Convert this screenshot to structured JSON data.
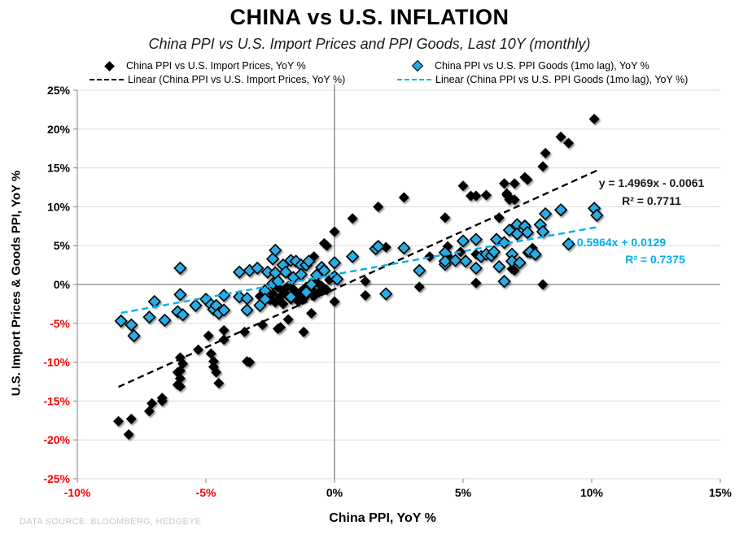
{
  "header": {
    "title": "CHINA vs U.S. INFLATION",
    "subtitle": "China PPI vs U.S. Import Prices and PPI Goods, Last 10Y (monthly)"
  },
  "legend": {
    "series1_label": "China PPI vs U.S. Import Prices, YoY %",
    "series1_linear_label": "Linear (China PPI vs U.S. Import Prices, YoY %)",
    "series2_label": "China PPI vs U.S. PPI Goods (1mo lag), YoY %",
    "series2_linear_label": "Linear (China PPI vs U.S. PPI Goods (1mo lag), YoY %)"
  },
  "annotations": {
    "black_eq": "y = 1.4969x - 0.0061",
    "black_r2": "R² = 0.7711",
    "blue_eq": "= 0.5964x + 0.0129",
    "blue_r2": "R² = 0.7375"
  },
  "footer": {
    "source": "DATA SOURCE: BLOOMBERG, HEDGEYE"
  },
  "colors": {
    "black_series": "#000000",
    "blue_series_fill": "#29ABE2",
    "blue_line": "#00B0F0",
    "negative_label": "#FF0000",
    "positive_label": "#000000",
    "gridline": "#D9D9D9",
    "axis_line": "#808080",
    "source_text": "#C8C8C8"
  },
  "chart_data": {
    "type": "scatter",
    "title": "CHINA vs U.S. INFLATION",
    "subtitle": "China PPI vs U.S. Import Prices and PPI Goods, Last 10Y (monthly)",
    "xlabel": "China PPI, YoY %",
    "ylabel": "U.S. Import Prices & Goods PPI, YoY %",
    "xlim": [
      -10,
      15
    ],
    "ylim": [
      -25,
      25
    ],
    "x_ticks": [
      -10,
      -5,
      0,
      5,
      10,
      15
    ],
    "y_ticks": [
      -25,
      -20,
      -15,
      -10,
      -5,
      0,
      5,
      10,
      15,
      20,
      25
    ],
    "units": "percent",
    "grid": "horizontal-light, zero-axes-gray",
    "legend_position": "top",
    "series": [
      {
        "name": "China PPI vs U.S. Import Prices, YoY %",
        "marker": "diamond",
        "color": "#000000",
        "points": [
          [
            -8.4,
            -17.6
          ],
          [
            -8.0,
            -19.3
          ],
          [
            -7.9,
            -17.3
          ],
          [
            -7.2,
            -16.3
          ],
          [
            -7.1,
            -15.3
          ],
          [
            -6.7,
            -15.0
          ],
          [
            -6.7,
            -14.6
          ],
          [
            -6.1,
            -11.3
          ],
          [
            -6.0,
            -12.1
          ],
          [
            -6.0,
            -13.1
          ],
          [
            -6.0,
            -9.4
          ],
          [
            -6.0,
            -11.1
          ],
          [
            -5.9,
            -10.2
          ],
          [
            -6.1,
            -12.9
          ],
          [
            -5.3,
            -8.4
          ],
          [
            -4.9,
            -6.6
          ],
          [
            -4.8,
            -8.9
          ],
          [
            -4.7,
            -9.9
          ],
          [
            -4.7,
            -10.6
          ],
          [
            -4.6,
            -11.3
          ],
          [
            -4.5,
            -12.7
          ],
          [
            -4.3,
            -5.9
          ],
          [
            -4.3,
            -7.1
          ],
          [
            -3.5,
            -6.1
          ],
          [
            -3.4,
            -9.9
          ],
          [
            -3.3,
            -10.0
          ],
          [
            -2.8,
            -5.2
          ],
          [
            -2.2,
            -5.7
          ],
          [
            -2.1,
            -5.5
          ],
          [
            -1.2,
            -6.1
          ],
          [
            -2.9,
            -1.5
          ],
          [
            -2.7,
            -0.9
          ],
          [
            -2.5,
            -2.0
          ],
          [
            -2.4,
            -1.2
          ],
          [
            -2.3,
            -2.3
          ],
          [
            -2.2,
            -0.4
          ],
          [
            -2.1,
            -1.6
          ],
          [
            -2.0,
            -2.5
          ],
          [
            -2.0,
            -0.8
          ],
          [
            -1.9,
            -1.2
          ],
          [
            -1.8,
            -0.2
          ],
          [
            -1.8,
            -4.5
          ],
          [
            -1.7,
            -1.9
          ],
          [
            -1.6,
            -0.6
          ],
          [
            -1.5,
            -1.4
          ],
          [
            -1.4,
            -2.2
          ],
          [
            -1.3,
            -0.9
          ],
          [
            -1.2,
            -1.8
          ],
          [
            -1.1,
            -0.3
          ],
          [
            -1.0,
            -1.1
          ],
          [
            -0.9,
            -3.7
          ],
          [
            -0.9,
            -0.6
          ],
          [
            -0.8,
            3.6
          ],
          [
            -0.8,
            -1.5
          ],
          [
            -0.7,
            0.3
          ],
          [
            -0.6,
            -1.0
          ],
          [
            -0.5,
            -0.2
          ],
          [
            -0.4,
            5.3
          ],
          [
            -0.3,
            5.0
          ],
          [
            -0.3,
            -0.7
          ],
          [
            -0.2,
            0.6
          ],
          [
            0.0,
            6.8
          ],
          [
            0.0,
            -2.2
          ],
          [
            0.7,
            8.5
          ],
          [
            1.2,
            0.4
          ],
          [
            1.2,
            -1.4
          ],
          [
            1.7,
            10.0
          ],
          [
            2.0,
            4.8
          ],
          [
            2.7,
            11.2
          ],
          [
            3.3,
            -0.3
          ],
          [
            3.7,
            3.6
          ],
          [
            4.3,
            8.6
          ],
          [
            4.4,
            4.9
          ],
          [
            4.4,
            3.7
          ],
          [
            4.9,
            4.2
          ],
          [
            5.0,
            12.7
          ],
          [
            5.3,
            11.4
          ],
          [
            5.5,
            11.4
          ],
          [
            5.5,
            3.9
          ],
          [
            5.5,
            0.2
          ],
          [
            5.9,
            11.5
          ],
          [
            6.4,
            8.6
          ],
          [
            6.6,
            13.0
          ],
          [
            6.7,
            11.7
          ],
          [
            6.7,
            11.5
          ],
          [
            6.8,
            10.9
          ],
          [
            6.8,
            11.2
          ],
          [
            7.0,
            13.0
          ],
          [
            7.0,
            10.9
          ],
          [
            7.0,
            1.8
          ],
          [
            7.4,
            13.8
          ],
          [
            7.5,
            13.5
          ],
          [
            7.4,
            7.7
          ],
          [
            7.5,
            4.1
          ],
          [
            7.7,
            4.7
          ],
          [
            7.8,
            3.9
          ],
          [
            6.9,
            2.0
          ],
          [
            8.1,
            0.0
          ],
          [
            8.1,
            15.2
          ],
          [
            8.2,
            16.9
          ],
          [
            8.8,
            19.0
          ],
          [
            9.1,
            18.2
          ],
          [
            10.1,
            21.3
          ]
        ]
      },
      {
        "name": "China PPI vs U.S. PPI Goods (1mo lag), YoY %",
        "marker": "diamond",
        "color": "#29ABE2",
        "points": [
          [
            -8.3,
            -4.7
          ],
          [
            -7.9,
            -5.2
          ],
          [
            -7.8,
            -6.6
          ],
          [
            -7.2,
            -4.2
          ],
          [
            -7.0,
            -2.2
          ],
          [
            -6.6,
            -4.6
          ],
          [
            -6.1,
            -3.5
          ],
          [
            -6.0,
            -1.3
          ],
          [
            -6.0,
            2.1
          ],
          [
            -5.9,
            -3.9
          ],
          [
            -5.4,
            -2.7
          ],
          [
            -5.0,
            -1.9
          ],
          [
            -4.8,
            -2.6
          ],
          [
            -4.7,
            -3.2
          ],
          [
            -4.6,
            -2.7
          ],
          [
            -4.5,
            -3.7
          ],
          [
            -4.3,
            -1.4
          ],
          [
            -4.3,
            -3.3
          ],
          [
            -3.7,
            -1.6
          ],
          [
            -3.7,
            1.6
          ],
          [
            -3.4,
            -1.8
          ],
          [
            -3.4,
            -3.3
          ],
          [
            -3.3,
            1.8
          ],
          [
            -3.0,
            2.1
          ],
          [
            -2.9,
            -2.7
          ],
          [
            -2.7,
            -0.8
          ],
          [
            -2.7,
            -1.9
          ],
          [
            -2.4,
            0.1
          ],
          [
            -2.6,
            1.6
          ],
          [
            -2.4,
            3.3
          ],
          [
            -2.3,
            4.4
          ],
          [
            -2.3,
            1.5
          ],
          [
            -2.2,
            0.4
          ],
          [
            -2.0,
            2.5
          ],
          [
            -1.9,
            1.6
          ],
          [
            -1.7,
            3.1
          ],
          [
            -1.7,
            -1.6
          ],
          [
            -1.6,
            0.9
          ],
          [
            -1.5,
            3.0
          ],
          [
            -1.3,
            2.5
          ],
          [
            -1.3,
            1.3
          ],
          [
            -1.1,
            2.5
          ],
          [
            -1.1,
            -1.0
          ],
          [
            -1.0,
            3.0
          ],
          [
            -0.9,
            0.0
          ],
          [
            -0.7,
            1.2
          ],
          [
            -0.5,
            2.2
          ],
          [
            -0.4,
            1.8
          ],
          [
            0.0,
            2.8
          ],
          [
            0.0,
            1.0
          ],
          [
            0.1,
            0.7
          ],
          [
            0.7,
            3.6
          ],
          [
            1.6,
            4.6
          ],
          [
            1.7,
            4.9
          ],
          [
            2.0,
            -1.2
          ],
          [
            2.7,
            4.7
          ],
          [
            3.3,
            1.8
          ],
          [
            4.3,
            4.1
          ],
          [
            4.3,
            2.6
          ],
          [
            4.3,
            3.0
          ],
          [
            4.7,
            3.1
          ],
          [
            5.0,
            5.6
          ],
          [
            5.1,
            3.0
          ],
          [
            5.5,
            5.8
          ],
          [
            5.5,
            2.1
          ],
          [
            5.7,
            3.6
          ],
          [
            5.9,
            3.9
          ],
          [
            6.1,
            3.7
          ],
          [
            6.2,
            4.2
          ],
          [
            6.3,
            5.8
          ],
          [
            6.4,
            2.3
          ],
          [
            6.6,
            5.4
          ],
          [
            6.6,
            0.4
          ],
          [
            6.8,
            7.0
          ],
          [
            6.9,
            3.9
          ],
          [
            6.9,
            3.0
          ],
          [
            7.1,
            7.7
          ],
          [
            7.1,
            6.5
          ],
          [
            7.2,
            2.8
          ],
          [
            7.4,
            7.5
          ],
          [
            7.5,
            6.7
          ],
          [
            7.6,
            4.2
          ],
          [
            7.8,
            3.9
          ],
          [
            8.0,
            7.7
          ],
          [
            8.1,
            6.8
          ],
          [
            8.2,
            9.1
          ],
          [
            8.8,
            9.6
          ],
          [
            9.1,
            5.2
          ],
          [
            10.1,
            9.8
          ],
          [
            10.2,
            8.9
          ]
        ]
      }
    ],
    "trendlines": [
      {
        "series": "China PPI vs U.S. Import Prices, YoY %",
        "equation": "y = 1.4969x - 0.0061",
        "r2": 0.7711,
        "slope": 1.4969,
        "intercept_pct": -0.61,
        "x_range": [
          -8.4,
          10.2
        ],
        "color": "#000000",
        "style": "dashed"
      },
      {
        "series": "China PPI vs U.S. PPI Goods (1mo lag), YoY %",
        "equation": "y = 0.5964x + 0.0129",
        "r2": 0.7375,
        "slope": 0.5964,
        "intercept_pct": 1.29,
        "x_range": [
          -8.3,
          10.2
        ],
        "color": "#00B0F0",
        "style": "dashed"
      }
    ]
  }
}
